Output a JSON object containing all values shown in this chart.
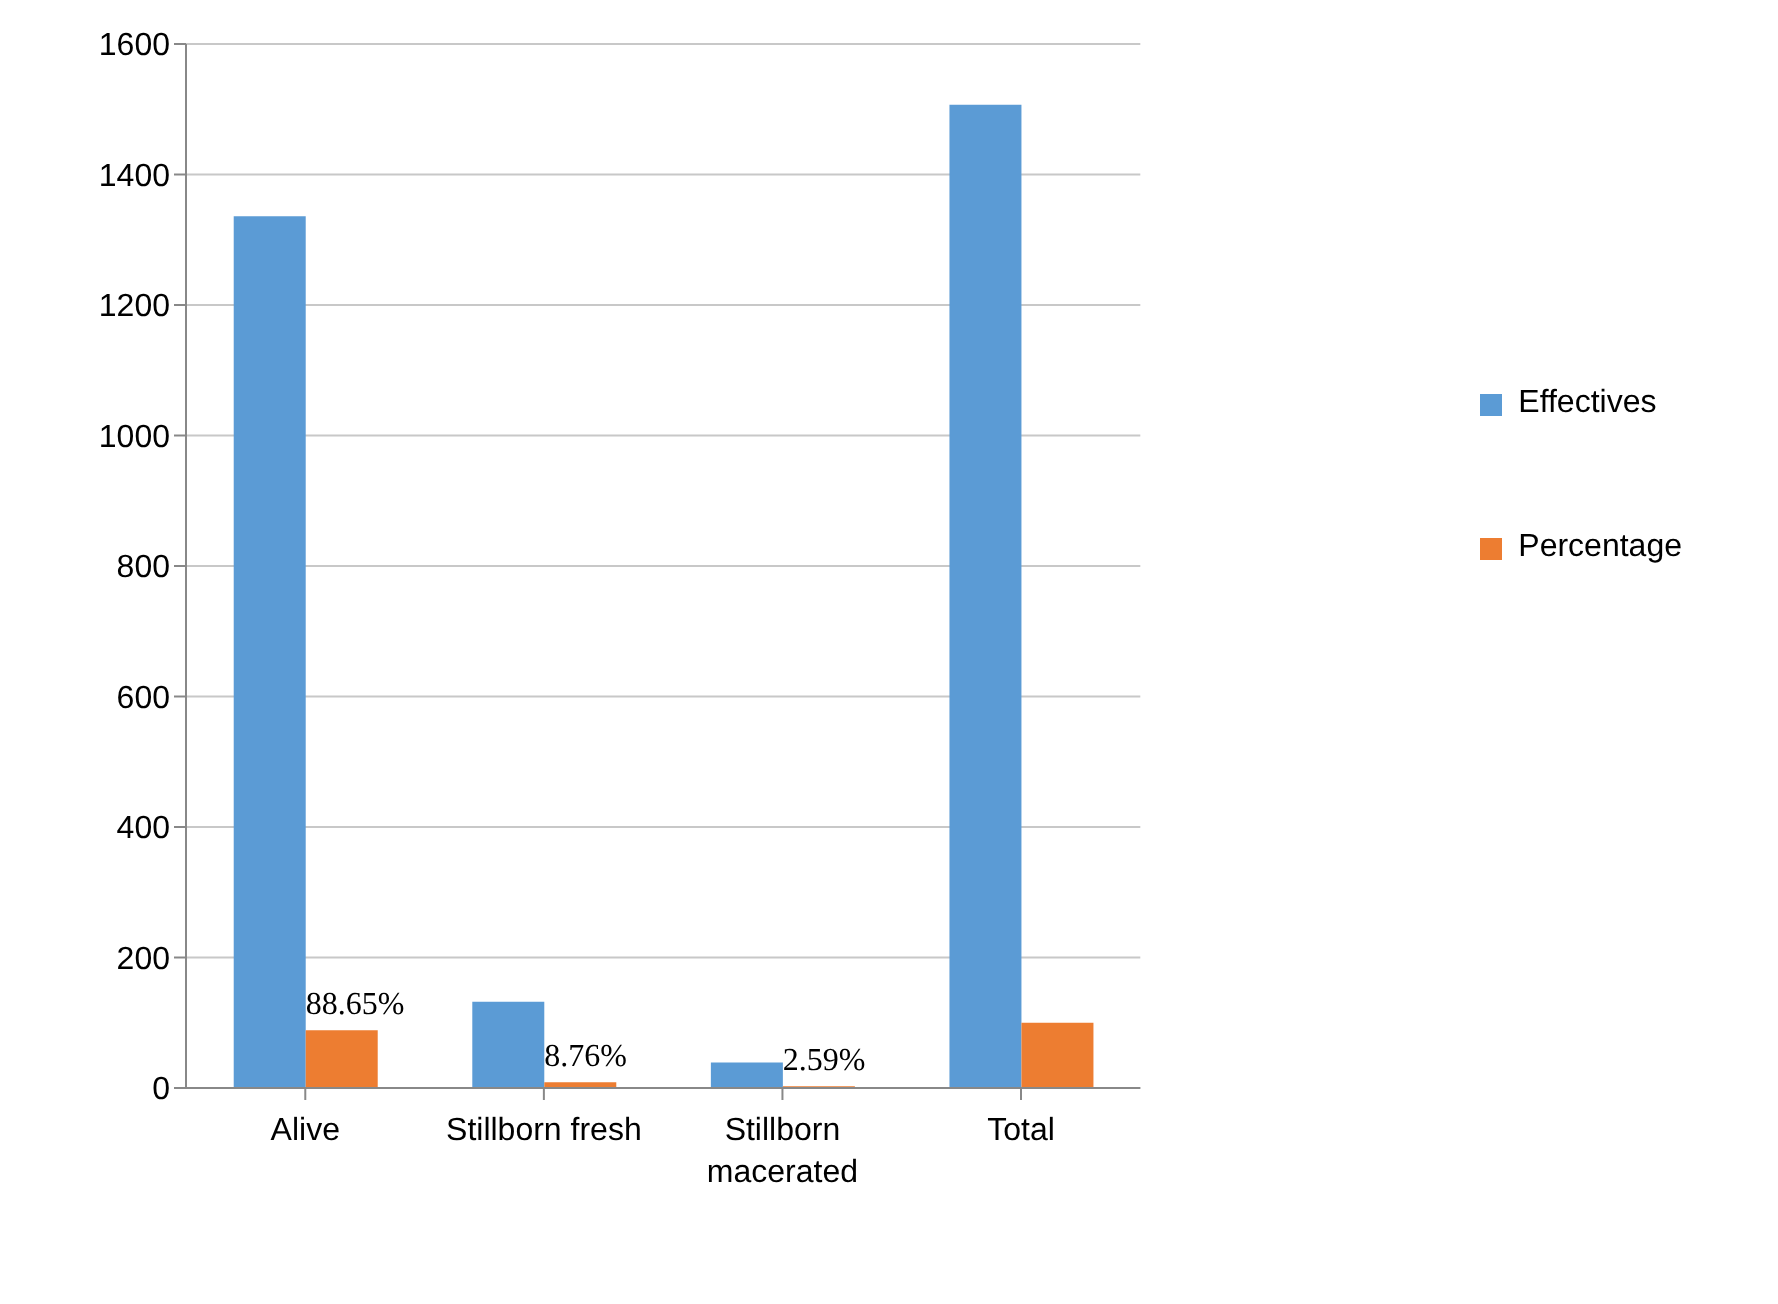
{
  "chart_data": {
    "type": "bar",
    "categories": [
      "Alive",
      "Stillborn fresh",
      "Stillborn macerated",
      "Total"
    ],
    "series": [
      {
        "name": "Effectives",
        "color": "#5b9bd5",
        "values": [
          1336,
          132,
          39,
          1507
        ]
      },
      {
        "name": "Percentage",
        "color": "#ed7d31",
        "values": [
          88.65,
          8.76,
          2.59,
          100
        ],
        "value_labels": [
          "88.65%",
          "8.76%",
          "2.59%",
          null
        ]
      }
    ],
    "ylim": [
      0,
      1600
    ],
    "yticks": [
      0,
      200,
      400,
      600,
      800,
      1000,
      1200,
      1400,
      1600
    ],
    "grid": "y",
    "legend": "right"
  }
}
